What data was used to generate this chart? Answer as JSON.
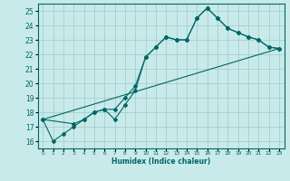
{
  "xlabel": "Humidex (Indice chaleur)",
  "ylabel": "",
  "bg_color": "#c8eaea",
  "grid_color": "#a0c8c8",
  "line_color": "#006666",
  "ylim": [
    15.5,
    25.5
  ],
  "xlim": [
    -0.5,
    23.5
  ],
  "yticks": [
    16,
    17,
    18,
    19,
    20,
    21,
    22,
    23,
    24,
    25
  ],
  "xticks": [
    0,
    1,
    2,
    3,
    4,
    5,
    6,
    7,
    8,
    9,
    10,
    11,
    12,
    13,
    14,
    15,
    16,
    17,
    18,
    19,
    20,
    21,
    22,
    23
  ],
  "series1_x": [
    0,
    1,
    2,
    3,
    4,
    5,
    6,
    7,
    8,
    9,
    10,
    11,
    12,
    13,
    14,
    15,
    16,
    17,
    18,
    19,
    20,
    21,
    22,
    23
  ],
  "series1_y": [
    17.5,
    16.0,
    16.5,
    17.0,
    17.5,
    18.0,
    18.2,
    17.5,
    18.5,
    19.5,
    21.8,
    22.5,
    23.2,
    23.0,
    23.0,
    24.5,
    25.2,
    24.5,
    23.8,
    23.5,
    23.2,
    23.0,
    22.5,
    22.4
  ],
  "series2_x": [
    0,
    3,
    4,
    5,
    6,
    7,
    8,
    9,
    10,
    11,
    12,
    13,
    14,
    15,
    16,
    17,
    18,
    19,
    20,
    21,
    22,
    23
  ],
  "series2_y": [
    17.5,
    17.2,
    17.5,
    18.0,
    18.2,
    18.2,
    19.0,
    19.8,
    21.8,
    22.5,
    23.2,
    23.0,
    23.0,
    24.5,
    25.2,
    24.5,
    23.8,
    23.5,
    23.2,
    23.0,
    22.5,
    22.4
  ],
  "series3_x": [
    0,
    23
  ],
  "series3_y": [
    17.5,
    22.4
  ]
}
